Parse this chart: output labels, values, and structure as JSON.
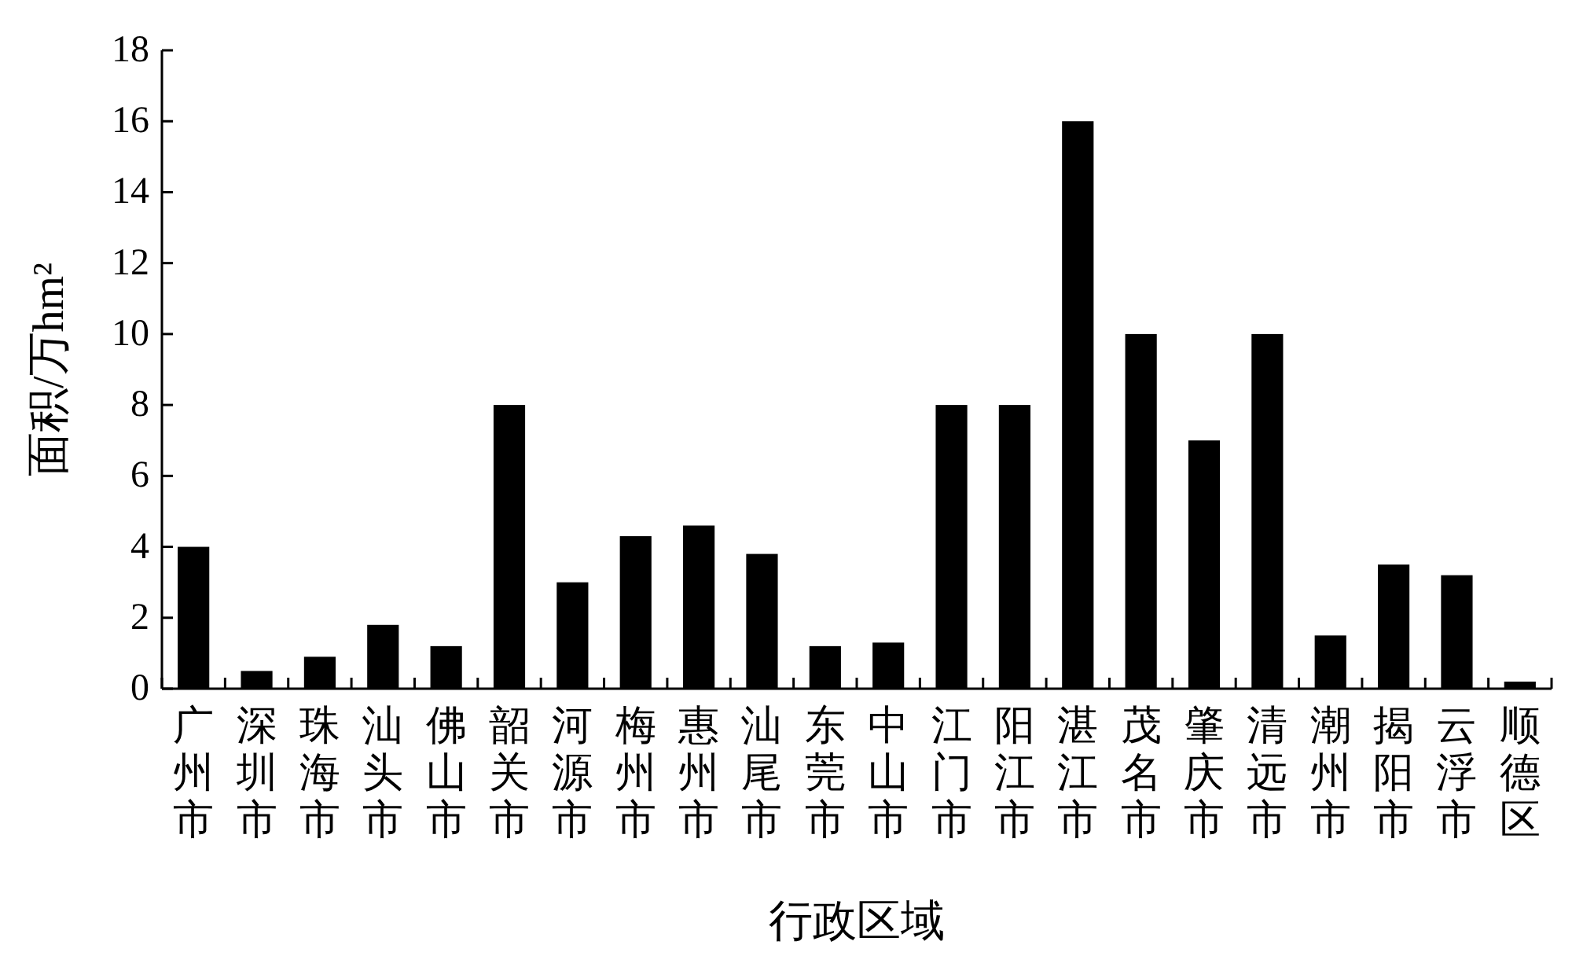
{
  "chart_data": {
    "type": "bar",
    "xlabel": "行政区域",
    "ylabel": "面积/万hm²",
    "categories": [
      "广州市",
      "深圳市",
      "珠海市",
      "汕头市",
      "佛山市",
      "韶关市",
      "河源市",
      "梅州市",
      "惠州市",
      "汕尾市",
      "东莞市",
      "中山市",
      "江门市",
      "阳江市",
      "湛江市",
      "茂名市",
      "肇庆市",
      "清远市",
      "潮州市",
      "揭阳市",
      "云浮市",
      "顺德区"
    ],
    "values": [
      4.0,
      0.5,
      0.9,
      1.8,
      1.2,
      8.0,
      3.0,
      4.3,
      4.6,
      3.8,
      1.2,
      1.3,
      8.0,
      8.0,
      16.0,
      10.0,
      7.0,
      10.0,
      1.5,
      3.5,
      3.2,
      0.2
    ],
    "color": "#000000",
    "ylim": [
      0,
      18
    ],
    "yticks": [
      0,
      2,
      4,
      6,
      8,
      10,
      12,
      14,
      16,
      18
    ],
    "grid": false
  }
}
